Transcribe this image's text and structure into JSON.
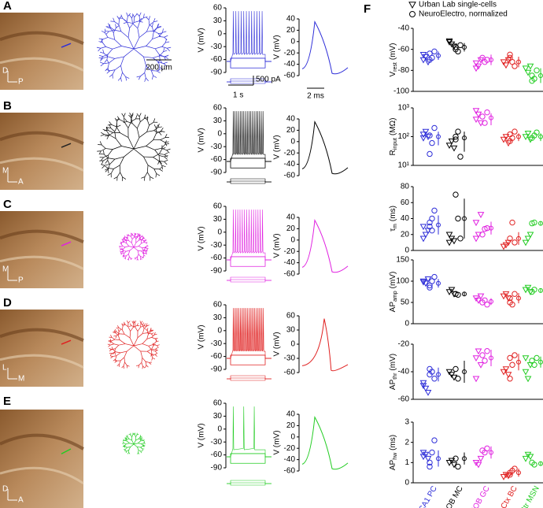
{
  "panels": [
    {
      "letter": "A",
      "orient": [
        "D",
        "P"
      ],
      "color": "#2e2ed8",
      "v1": {
        "ylabel": "V (mV)",
        "ylim": [
          -90,
          60
        ],
        "yticks": [
          60,
          30,
          0,
          -30,
          -60,
          -90
        ]
      },
      "v2": {
        "ylabel": "V (mV)",
        "ylim": [
          -60,
          40
        ],
        "yticks": [
          40,
          20,
          0,
          -20,
          -40,
          -60
        ]
      },
      "scalebars": {
        "length": "200 µm",
        "current": "500 pA",
        "time": "1 s",
        "ap_time": "2 ms"
      }
    },
    {
      "letter": "B",
      "orient": [
        "M",
        "A"
      ],
      "color": "#000000",
      "v1": {
        "ylabel": "V (mV)",
        "ylim": [
          -90,
          60
        ],
        "yticks": [
          60,
          30,
          0,
          -30,
          -60,
          -90
        ]
      },
      "v2": {
        "ylabel": "V (mV)",
        "ylim": [
          -60,
          40
        ],
        "yticks": [
          40,
          20,
          0,
          -20,
          -40,
          -60
        ]
      }
    },
    {
      "letter": "C",
      "orient": [
        "M",
        "P"
      ],
      "color": "#e020e0",
      "v1": {
        "ylabel": "V (mV)",
        "ylim": [
          -90,
          60
        ],
        "yticks": [
          60,
          30,
          0,
          -30,
          -60,
          -90
        ]
      },
      "v2": {
        "ylabel": "V (mV)",
        "ylim": [
          -60,
          40
        ],
        "yticks": [
          40,
          20,
          0,
          -20,
          -40,
          -60
        ]
      }
    },
    {
      "letter": "D",
      "orient": [
        "L",
        "M"
      ],
      "color": "#e02020",
      "v1": {
        "ylabel": "V (mV)",
        "ylim": [
          -90,
          60
        ],
        "yticks": [
          60,
          30,
          0,
          -30,
          -60,
          -90
        ]
      },
      "v2": {
        "ylabel": "V (mV)",
        "ylim": [
          -60,
          60
        ],
        "yticks": [
          60,
          30,
          0,
          -30,
          -60
        ]
      }
    },
    {
      "letter": "E",
      "orient": [
        "D",
        "A"
      ],
      "color": "#22cc22",
      "v1": {
        "ylabel": "V (mV)",
        "ylim": [
          -90,
          60
        ],
        "yticks": [
          60,
          30,
          0,
          -30,
          -60,
          -90
        ]
      },
      "v2": {
        "ylabel": "V (mV)",
        "ylim": [
          -60,
          40
        ],
        "yticks": [
          40,
          20,
          0,
          -20,
          -40,
          -60
        ]
      }
    }
  ],
  "f_letter": "F",
  "legend": [
    "Urban Lab single-cells",
    "NeuroElectro, normalized"
  ],
  "categories": [
    "CA1 PC",
    "MOB MC",
    "MOB GC",
    "Ctx BC",
    "Str MSN"
  ],
  "colors": [
    "#2e2ed8",
    "#000000",
    "#e020e0",
    "#e02020",
    "#22cc22"
  ],
  "chart_data": [
    {
      "type": "scatter",
      "ylabel": {
        "main": "V",
        "sub": "rest",
        "unit": "(mV)"
      },
      "ylim": [
        -100,
        -40
      ],
      "yticks": [
        -40,
        -60,
        -80,
        -100
      ],
      "ul": [
        [
          -70,
          -67,
          -72,
          -65
        ],
        [
          -53,
          -55,
          -57,
          -52
        ],
        [
          -73,
          -76,
          -70,
          -78
        ],
        [
          -72,
          -75,
          -70
        ],
        [
          -78,
          -82,
          -76
        ]
      ],
      "ne": [
        [
          -64,
          -68,
          -62,
          -70
        ],
        [
          -60,
          -62,
          -56,
          -58
        ],
        [
          -68,
          -72,
          -70
        ],
        [
          -68,
          -72,
          -76,
          -65
        ],
        [
          -85,
          -88,
          -80,
          -90
        ]
      ],
      "mean": [
        -66,
        -58,
        -70,
        -72,
        -85
      ],
      "err": [
        4,
        4,
        5,
        5,
        7
      ]
    },
    {
      "type": "scatter",
      "log": true,
      "ylabel": {
        "main": "R",
        "sub": "input",
        "unit": "(MΩ)"
      },
      "ylim": [
        10,
        1000
      ],
      "yticks": [
        {
          "value": 1000,
          "label": "10³"
        },
        {
          "value": 100,
          "label": "10²"
        },
        {
          "value": 10,
          "label": "10¹"
        }
      ],
      "ul": [
        [
          120,
          150,
          100,
          90
        ],
        [
          50,
          70,
          40
        ],
        [
          400,
          600,
          300,
          800
        ],
        [
          80,
          100,
          60
        ],
        [
          100,
          130,
          80
        ]
      ],
      "ne": [
        [
          110,
          60,
          200,
          25
        ],
        [
          80,
          150,
          20,
          100
        ],
        [
          500,
          300,
          700
        ],
        [
          120,
          90,
          150,
          70
        ],
        [
          90,
          110,
          140
        ]
      ],
      "mean": [
        100,
        90,
        450,
        100,
        100
      ],
      "err": [
        50,
        60,
        200,
        30,
        30
      ]
    },
    {
      "type": "scatter",
      "ylabel": {
        "main": "τ",
        "sub": "m",
        "unit": "(ms)"
      },
      "ylim": [
        0,
        80
      ],
      "yticks": [
        80,
        60,
        40,
        20,
        0
      ],
      "ul": [
        [
          15,
          20,
          25,
          30
        ],
        [
          10,
          15,
          12,
          20
        ],
        [
          15,
          20,
          45,
          35
        ],
        [
          5,
          7,
          10
        ],
        [
          10,
          15,
          20
        ]
      ],
      "ne": [
        [
          30,
          40,
          50,
          35,
          25
        ],
        [
          70,
          40,
          15
        ],
        [
          20,
          27,
          28
        ],
        [
          15,
          35,
          10
        ],
        [
          34,
          35
        ]
      ],
      "mean": [
        32,
        40,
        28,
        15,
        34
      ],
      "err": [
        12,
        25,
        8,
        8,
        2
      ]
    },
    {
      "type": "scatter",
      "ylabel": {
        "main": "AP",
        "sub": "amp",
        "unit": "(mV)"
      },
      "ylim": [
        0,
        150
      ],
      "yticks": [
        150,
        100,
        50,
        0
      ],
      "ul": [
        [
          100,
          95,
          105,
          98
        ],
        [
          75,
          80,
          70
        ],
        [
          60,
          55,
          65
        ],
        [
          65,
          70,
          60
        ],
        [
          80,
          85,
          75
        ]
      ],
      "ne": [
        [
          90,
          100,
          110,
          85
        ],
        [
          70,
          68
        ],
        [
          50,
          55,
          45
        ],
        [
          60,
          45,
          70,
          50
        ],
        [
          75,
          80
        ]
      ],
      "mean": [
        95,
        70,
        52,
        60,
        78
      ],
      "err": [
        10,
        5,
        8,
        12,
        5
      ]
    },
    {
      "type": "scatter",
      "ylabel": {
        "main": "AP",
        "sub": "thr",
        "unit": "(mV)"
      },
      "ylim": [
        -60,
        -20
      ],
      "yticks": [
        -20,
        -40,
        -60
      ],
      "ul": [
        [
          -50,
          -52,
          -55,
          -48
        ],
        [
          -40,
          -42,
          -44
        ],
        [
          -30,
          -25,
          -35,
          -45
        ],
        [
          -40,
          -38,
          -42
        ],
        [
          -40,
          -45,
          -35,
          -30
        ]
      ],
      "ne": [
        [
          -42,
          -40,
          -45,
          -38
        ],
        [
          -38,
          -45
        ],
        [
          -28,
          -32,
          -25
        ],
        [
          -30,
          -35,
          -28,
          -45
        ],
        [
          -32,
          -35,
          -30
        ]
      ],
      "mean": [
        -42,
        -40,
        -30,
        -33,
        -33
      ],
      "err": [
        5,
        8,
        6,
        6,
        4
      ]
    },
    {
      "type": "scatter",
      "ylabel": {
        "main": "AP",
        "sub": "hw",
        "unit": "(ms)"
      },
      "ylim": [
        0,
        3
      ],
      "yticks": [
        3,
        2,
        1,
        0
      ],
      "ul": [
        [
          1.3,
          1.4,
          1.2,
          1.5
        ],
        [
          1.0,
          1.1,
          0.9
        ],
        [
          1.0,
          0.9,
          1.2
        ],
        [
          0.3,
          0.4,
          0.35
        ],
        [
          1.2,
          1.4,
          1.3
        ]
      ],
      "ne": [
        [
          1.0,
          1.5,
          2.1,
          0.8
        ],
        [
          1.2,
          0.8
        ],
        [
          1.6,
          1.5,
          1.7
        ],
        [
          0.5,
          0.6,
          0.7,
          0.4
        ],
        [
          1.0,
          0.9
        ]
      ],
      "mean": [
        1.2,
        1.2,
        1.5,
        0.5,
        0.95
      ],
      "err": [
        0.4,
        0.3,
        0.3,
        0.2,
        0.1
      ]
    }
  ]
}
